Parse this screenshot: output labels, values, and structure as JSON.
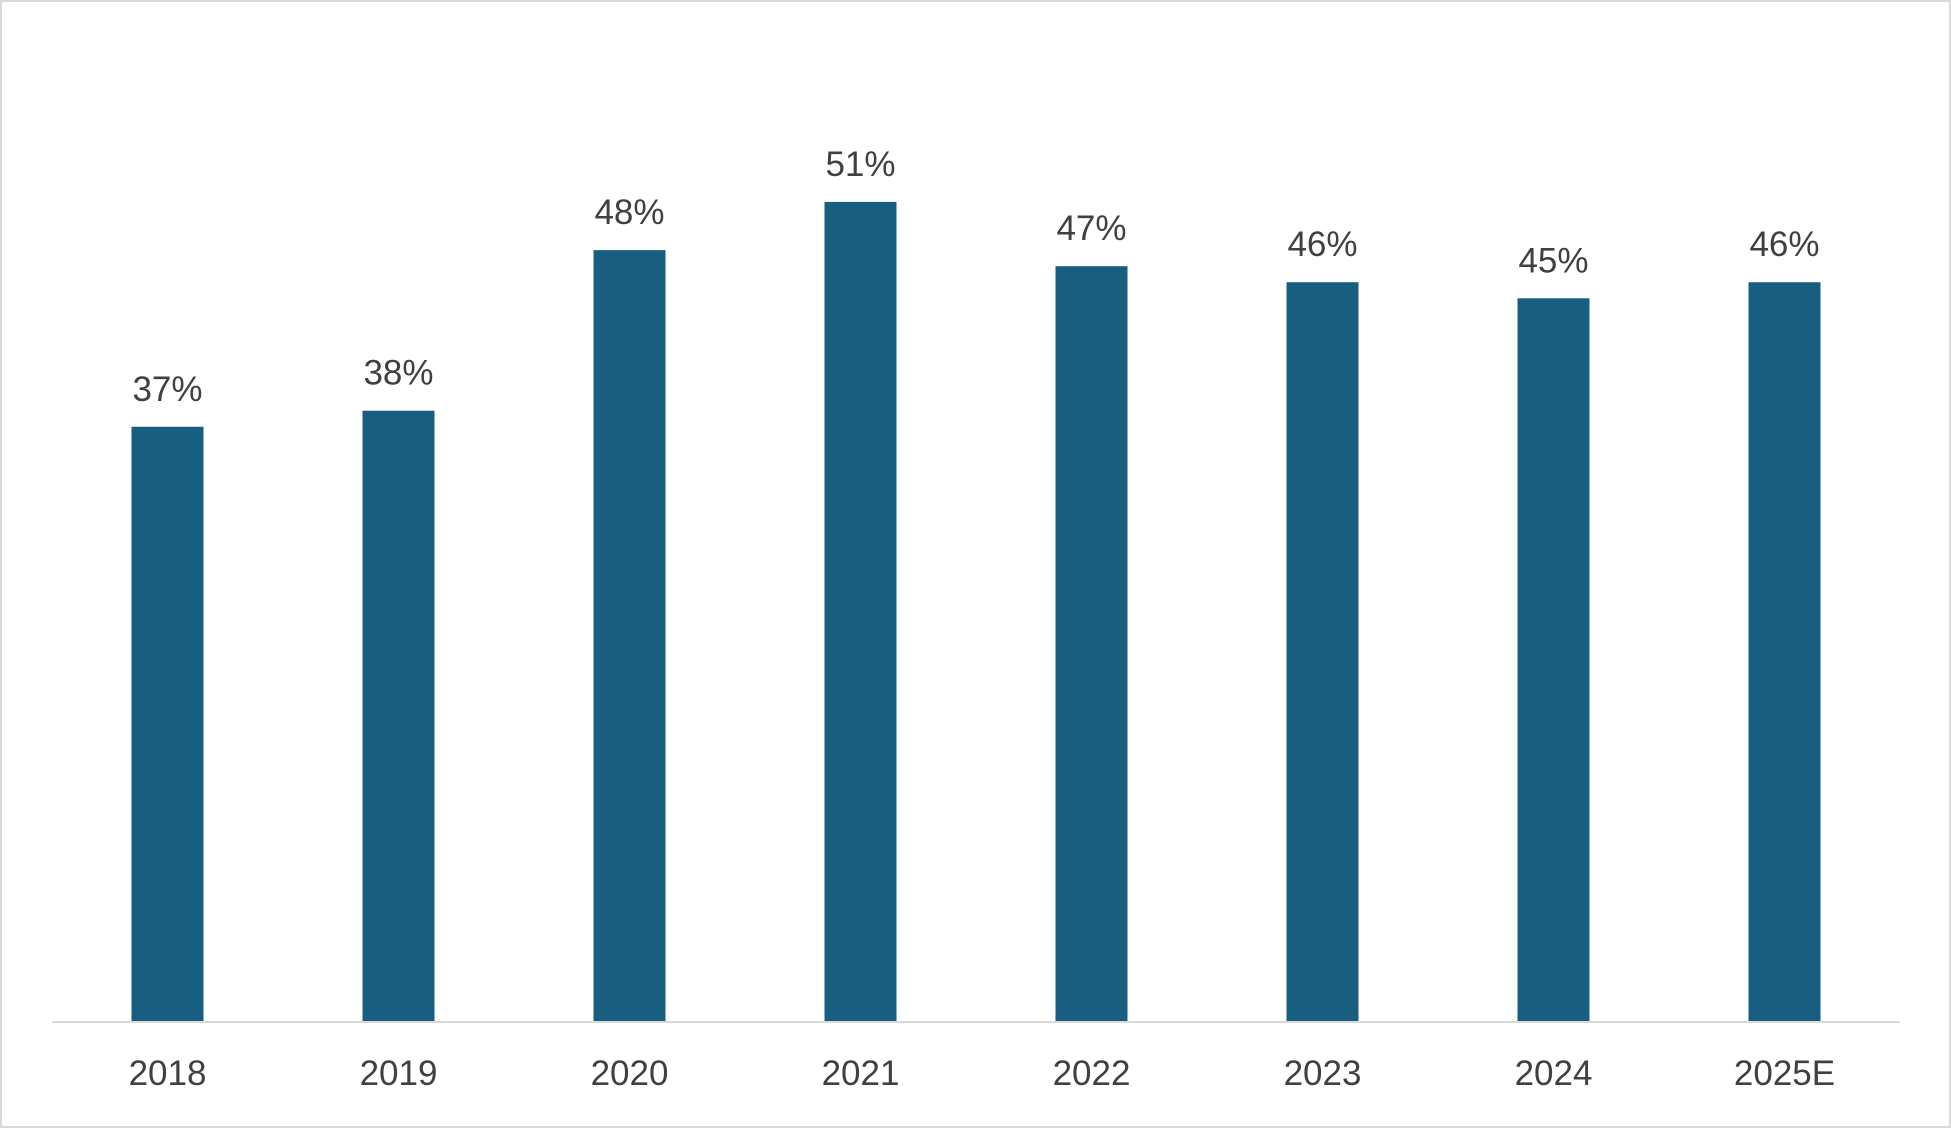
{
  "chart_data": {
    "type": "bar",
    "title": "",
    "xlabel": "",
    "ylabel": "",
    "categories": [
      "2018",
      "2019",
      "2020",
      "2021",
      "2022",
      "2023",
      "2024",
      "2025E"
    ],
    "values": [
      37,
      38,
      48,
      51,
      47,
      46,
      45,
      46
    ],
    "value_labels": [
      "37%",
      "38%",
      "48%",
      "51%",
      "47%",
      "46%",
      "45%",
      "46%"
    ],
    "unit": "%",
    "ylim": [
      0,
      60
    ],
    "grid": false,
    "legend": "none",
    "colors": {
      "bar": "#175e80",
      "text": "#404040",
      "axis": "#d9d9d9",
      "border": "#d9d9d9"
    }
  }
}
